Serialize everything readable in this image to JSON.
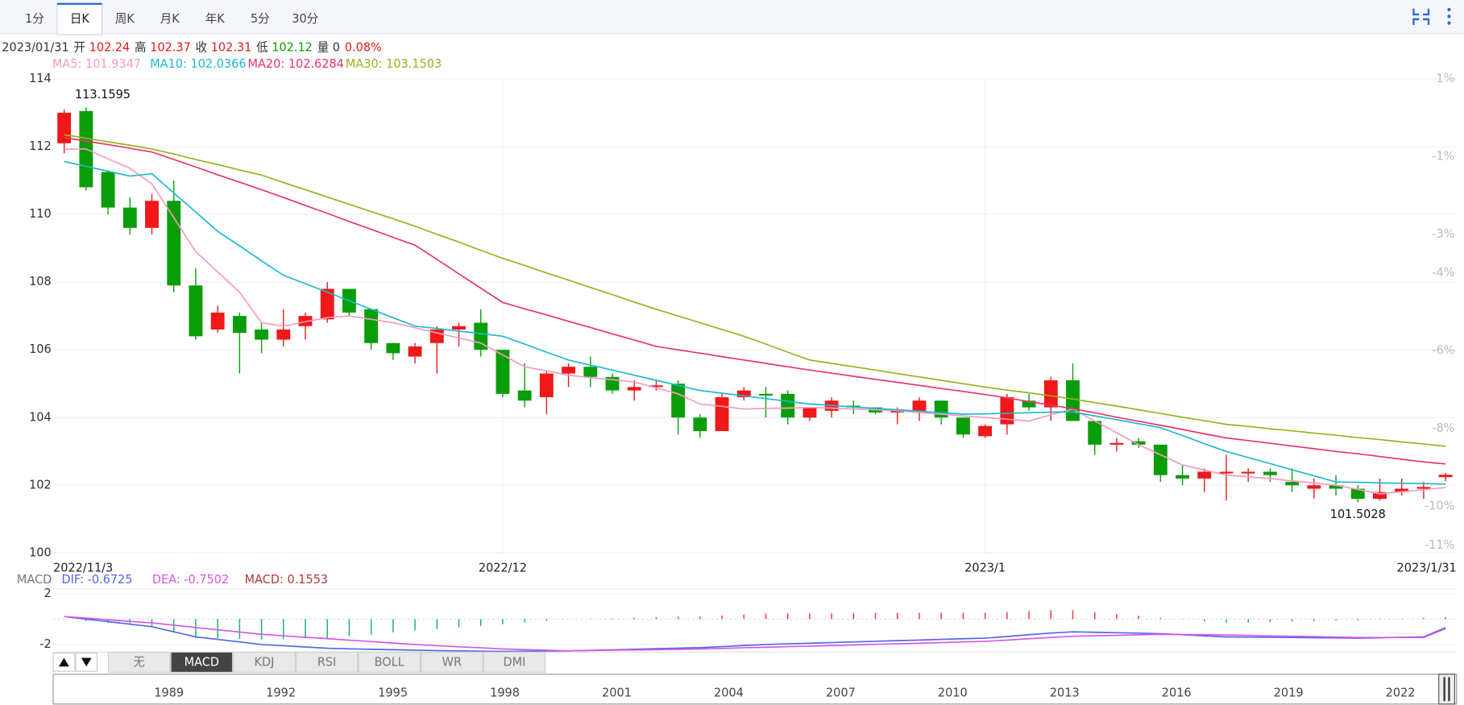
{
  "tabs": {
    "items": [
      "1分",
      "日K",
      "周K",
      "月K",
      "年K",
      "5分",
      "30分"
    ],
    "active": 1
  },
  "info": {
    "date": "2023/01/31",
    "open_label": "开",
    "high_label": "高",
    "close_label": "收",
    "low_label": "低",
    "volume_label": "量",
    "volume": 0,
    "change": "0.08%"
  },
  "chart_data": [
    {
      "type": "candlestick",
      "categories": [
        "2022/11/3",
        null,
        null,
        null,
        null,
        null,
        null,
        null,
        null,
        null,
        null,
        null,
        null,
        null,
        null,
        null,
        null,
        null,
        null,
        null,
        "2022/12",
        null,
        null,
        null,
        null,
        null,
        null,
        null,
        null,
        null,
        null,
        null,
        null,
        null,
        null,
        null,
        null,
        null,
        null,
        null,
        null,
        null,
        "2023/1",
        null,
        null,
        null,
        null,
        null,
        null,
        null,
        null,
        null,
        null,
        null,
        null,
        null,
        null,
        null,
        null,
        null,
        null,
        null,
        null,
        "2023/1/31"
      ],
      "open": [
        112.1,
        113.05,
        111.25,
        110.2,
        109.6,
        110.4,
        107.9,
        106.6,
        107.0,
        106.6,
        106.3,
        106.7,
        106.9,
        107.8,
        107.2,
        106.2,
        105.8,
        106.2,
        106.6,
        106.8,
        106.0,
        104.8,
        104.6,
        105.3,
        105.5,
        105.2,
        104.8,
        104.9,
        105.0,
        104.0,
        103.6,
        104.6,
        104.7,
        104.7,
        104.0,
        104.2,
        104.35,
        104.3,
        104.15,
        104.2,
        104.5,
        104.0,
        103.45,
        103.8,
        104.5,
        104.3,
        105.1,
        103.9,
        103.2,
        103.3,
        103.2,
        102.3,
        102.2,
        102.35,
        102.35,
        102.4,
        102.1,
        101.9,
        102.0,
        101.9,
        101.6,
        101.8,
        101.9,
        102.24
      ],
      "high": [
        113.1,
        113.1595,
        111.3,
        110.5,
        110.6,
        111.0,
        108.4,
        107.3,
        107.1,
        106.8,
        107.2,
        107.1,
        108.0,
        107.8,
        107.2,
        106.2,
        106.2,
        106.7,
        106.8,
        107.2,
        106.0,
        105.6,
        105.4,
        105.6,
        105.8,
        105.3,
        105.1,
        105.1,
        105.1,
        104.1,
        104.7,
        104.9,
        104.9,
        104.8,
        104.3,
        104.6,
        104.5,
        104.3,
        104.3,
        104.6,
        104.5,
        104.0,
        103.8,
        104.7,
        104.7,
        105.2,
        105.6,
        103.9,
        103.4,
        103.4,
        103.2,
        102.6,
        102.5,
        102.9,
        102.5,
        102.5,
        102.5,
        102.2,
        102.3,
        102.0,
        102.2,
        102.2,
        102.1,
        102.37
      ],
      "low": [
        111.8,
        110.7,
        110.0,
        109.4,
        109.4,
        107.7,
        106.3,
        106.5,
        105.3,
        105.9,
        106.1,
        106.3,
        106.8,
        107.0,
        106.0,
        105.7,
        105.6,
        105.3,
        106.1,
        105.8,
        104.6,
        104.3,
        104.1,
        104.9,
        104.9,
        104.7,
        104.5,
        104.8,
        103.5,
        103.4,
        103.6,
        104.5,
        104.0,
        103.8,
        103.9,
        104.0,
        104.1,
        104.1,
        103.8,
        103.9,
        103.8,
        103.4,
        103.4,
        103.5,
        104.2,
        103.9,
        103.9,
        102.9,
        103.0,
        103.1,
        102.1,
        102.0,
        101.8,
        101.55,
        102.1,
        102.1,
        101.8,
        101.6,
        101.7,
        101.5028,
        101.55,
        101.7,
        101.6,
        102.12
      ],
      "close": [
        113.0,
        110.8,
        110.2,
        109.6,
        110.4,
        107.9,
        106.4,
        107.1,
        106.5,
        106.3,
        106.6,
        107.0,
        107.8,
        107.1,
        106.2,
        105.9,
        106.1,
        106.6,
        106.7,
        106.0,
        104.7,
        104.5,
        105.3,
        105.5,
        105.2,
        104.8,
        104.9,
        104.95,
        104.0,
        103.6,
        104.6,
        104.8,
        104.65,
        104.0,
        104.3,
        104.5,
        104.3,
        104.15,
        104.2,
        104.5,
        104.0,
        103.5,
        103.75,
        104.6,
        104.3,
        105.1,
        103.9,
        103.2,
        103.25,
        103.2,
        102.3,
        102.2,
        102.4,
        102.4,
        102.4,
        102.3,
        102.0,
        102.0,
        101.9,
        101.6,
        101.8,
        101.9,
        101.95,
        102.31
      ],
      "up_color": "#f01818",
      "down_color": "#0a9d0a",
      "series": [
        {
          "name": "MA5:",
          "color": "#f59ac2",
          "values": [
            111.93,
            111.93,
            111.64,
            111.36,
            110.9,
            109.9,
            108.9,
            108.3,
            107.7,
            106.8,
            106.7,
            106.83,
            106.95,
            107.0,
            106.9,
            106.8,
            106.65,
            106.5,
            106.35,
            106.2,
            105.85,
            105.5,
            105.38,
            105.25,
            105.18,
            105.12,
            105.05,
            104.88,
            104.7,
            104.4,
            104.33,
            104.25,
            104.27,
            104.28,
            104.3,
            104.28,
            104.25,
            104.23,
            104.2,
            104.15,
            104.1,
            104.05,
            104.0,
            103.95,
            103.9,
            104.08,
            104.25,
            103.9,
            103.55,
            103.2,
            102.9,
            102.6,
            102.45,
            102.3,
            102.25,
            102.2,
            102.13,
            102.07,
            102.0,
            101.88,
            101.75,
            101.81,
            101.87,
            101.9347
          ]
        },
        {
          "name": "MA10:",
          "color": "#1ab9d2",
          "values": [
            111.56,
            111.42,
            111.27,
            111.13,
            111.2,
            110.63,
            110.07,
            109.5,
            109.07,
            108.63,
            108.2,
            107.95,
            107.7,
            107.45,
            107.2,
            106.95,
            106.7,
            106.63,
            106.55,
            106.48,
            106.4,
            106.17,
            105.93,
            105.7,
            105.55,
            105.4,
            105.25,
            105.1,
            104.95,
            104.8,
            104.72,
            104.64,
            104.56,
            104.48,
            104.4,
            104.36,
            104.31,
            104.27,
            104.23,
            104.19,
            104.14,
            104.1,
            104.11,
            104.13,
            104.14,
            104.16,
            104.17,
            104.05,
            103.94,
            103.82,
            103.7,
            103.47,
            103.23,
            103.0,
            102.82,
            102.64,
            102.46,
            102.28,
            102.1,
            102.09,
            102.07,
            102.06,
            102.05,
            102.0366
          ]
        },
        {
          "name": "MA20:",
          "color": "#e8356f",
          "values": [
            112.27,
            112.16,
            112.06,
            111.95,
            111.84,
            111.62,
            111.4,
            111.17,
            110.95,
            110.73,
            110.5,
            110.26,
            110.03,
            109.79,
            109.56,
            109.32,
            109.09,
            108.67,
            108.24,
            107.82,
            107.4,
            107.21,
            107.03,
            106.84,
            106.66,
            106.47,
            106.29,
            106.1,
            106.0,
            105.9,
            105.8,
            105.7,
            105.6,
            105.5,
            105.4,
            105.31,
            105.22,
            105.13,
            105.04,
            104.95,
            104.86,
            104.77,
            104.68,
            104.58,
            104.47,
            104.37,
            104.26,
            104.14,
            104.01,
            103.89,
            103.77,
            103.65,
            103.52,
            103.4,
            103.32,
            103.24,
            103.16,
            103.08,
            103.0,
            102.93,
            102.85,
            102.77,
            102.69,
            102.6284
          ]
        },
        {
          "name": "MA30:",
          "color": "#97b31c",
          "values": [
            112.35,
            112.25,
            112.14,
            112.04,
            111.93,
            111.78,
            111.62,
            111.47,
            111.31,
            111.16,
            110.94,
            110.73,
            110.51,
            110.3,
            110.08,
            109.87,
            109.65,
            109.41,
            109.18,
            108.94,
            108.7,
            108.49,
            108.27,
            108.06,
            107.84,
            107.63,
            107.41,
            107.2,
            107.0,
            106.8,
            106.6,
            106.4,
            106.17,
            105.93,
            105.7,
            105.6,
            105.5,
            105.4,
            105.3,
            105.2,
            105.1,
            105.0,
            104.9,
            104.81,
            104.73,
            104.64,
            104.55,
            104.44,
            104.34,
            104.23,
            104.12,
            104.01,
            103.91,
            103.8,
            103.74,
            103.67,
            103.61,
            103.54,
            103.48,
            103.41,
            103.35,
            103.28,
            103.22,
            103.1503
          ]
        }
      ],
      "ylim": [
        100,
        114
      ],
      "yticks": [
        100,
        102,
        104,
        106,
        108,
        110,
        112,
        114
      ],
      "y2lim": [
        -11.2,
        1
      ],
      "y2ticks": [
        {
          "value": 1,
          "label": "1%"
        },
        {
          "value": -1,
          "label": "-1%"
        },
        {
          "value": -3,
          "label": "-3%"
        },
        {
          "value": -4,
          "label": "-4%"
        },
        {
          "value": -6,
          "label": "-6%"
        },
        {
          "value": -8,
          "label": "-8%"
        },
        {
          "value": -10,
          "label": "-10%"
        },
        {
          "value": -11,
          "label": "-11%"
        }
      ],
      "grid": true
    },
    {
      "type": "macd",
      "title": "MACD",
      "series": [
        {
          "name": "DIF:",
          "color": "#5565e6",
          "values": [
            0.2,
            0.0,
            -0.2,
            -0.4,
            -0.6,
            -1.0,
            -1.4,
            -1.6,
            -1.8,
            -2.0,
            -2.1,
            -2.2,
            -2.3,
            -2.34,
            -2.38,
            -2.41,
            -2.45,
            -2.48,
            -2.5,
            -2.53,
            -2.55,
            -2.53,
            -2.52,
            -2.5,
            -2.46,
            -2.42,
            -2.38,
            -2.33,
            -2.29,
            -2.25,
            -2.17,
            -2.08,
            -2.0,
            -1.95,
            -1.9,
            -1.85,
            -1.8,
            -1.75,
            -1.7,
            -1.65,
            -1.6,
            -1.55,
            -1.5,
            -1.37,
            -1.23,
            -1.1,
            -1.0,
            -1.04,
            -1.08,
            -1.11,
            -1.15,
            -1.23,
            -1.32,
            -1.4,
            -1.42,
            -1.43,
            -1.45,
            -1.47,
            -1.48,
            -1.5,
            -1.47,
            -1.43,
            -1.4,
            -0.6725
          ]
        },
        {
          "name": "DEA:",
          "color": "#d656e8",
          "values": [
            0.2,
            0.08,
            -0.05,
            -0.18,
            -0.3,
            -0.48,
            -0.66,
            -0.84,
            -1.02,
            -1.2,
            -1.31,
            -1.43,
            -1.54,
            -1.66,
            -1.77,
            -1.89,
            -2.0,
            -2.09,
            -2.18,
            -2.26,
            -2.35,
            -2.4,
            -2.45,
            -2.5,
            -2.48,
            -2.45,
            -2.43,
            -2.4,
            -2.38,
            -2.35,
            -2.31,
            -2.26,
            -2.22,
            -2.17,
            -2.13,
            -2.08,
            -2.04,
            -1.99,
            -1.95,
            -1.9,
            -1.85,
            -1.8,
            -1.75,
            -1.65,
            -1.55,
            -1.45,
            -1.35,
            -1.31,
            -1.28,
            -1.24,
            -1.2,
            -1.22,
            -1.23,
            -1.25,
            -1.28,
            -1.32,
            -1.35,
            -1.38,
            -1.42,
            -1.45,
            -1.45,
            -1.45,
            -1.45,
            -0.7502
          ]
        }
      ],
      "histogram": {
        "name": "MACD:",
        "color": "#b0393a",
        "up_color": "#e8413e",
        "down_color": "#22b07a",
        "values": [
          0,
          -0.16,
          -0.3,
          -0.44,
          -0.6,
          -1.04,
          -1.48,
          -1.52,
          -1.56,
          -1.6,
          -1.58,
          -1.54,
          -1.52,
          -1.36,
          -1.22,
          -1.04,
          -0.9,
          -0.78,
          -0.64,
          -0.54,
          -0.4,
          -0.26,
          -0.14,
          0,
          0.04,
          0.06,
          0.1,
          0.14,
          0.18,
          0.2,
          0.28,
          0.36,
          0.44,
          0.44,
          0.46,
          0.46,
          0.48,
          0.48,
          0.5,
          0.5,
          0.5,
          0.5,
          0.5,
          0.56,
          0.64,
          0.7,
          0.7,
          0.54,
          0.4,
          0.26,
          0.1,
          -0.02,
          -0.18,
          -0.3,
          -0.28,
          -0.22,
          -0.2,
          -0.18,
          -0.12,
          -0.1,
          -0.04,
          0.04,
          0.1,
          0.1553
        ]
      },
      "ylim": [
        -2.6,
        2.4
      ],
      "yticks": [
        -2,
        2
      ]
    }
  ],
  "indicators": {
    "items": [
      "无",
      "MACD",
      "KDJ",
      "RSI",
      "BOLL",
      "WR",
      "DMI"
    ],
    "active": 1
  },
  "navigator": {
    "years": [
      "1989",
      "1992",
      "1995",
      "1998",
      "2001",
      "2004",
      "2007",
      "2010",
      "2013",
      "2016",
      "2019",
      "2022"
    ]
  }
}
